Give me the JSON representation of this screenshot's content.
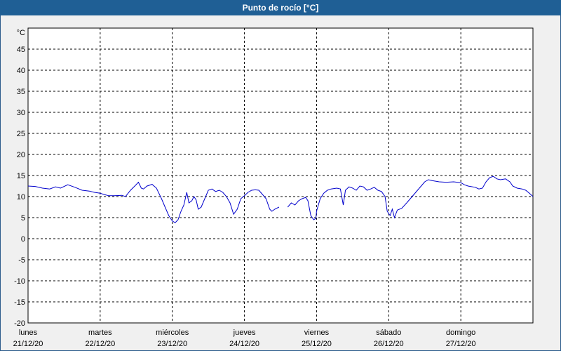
{
  "window": {
    "title": "Punto de rocío [°C]"
  },
  "chart_data": {
    "type": "line",
    "title": "Punto de rocío [°C]",
    "ylabel": "°C",
    "ylim": [
      -20,
      50
    ],
    "yticks": [
      45,
      40,
      35,
      30,
      25,
      20,
      15,
      10,
      5,
      0,
      -5,
      -10,
      -15,
      -20
    ],
    "grid": true,
    "x_range_days": [
      0,
      7
    ],
    "x_ticks": [
      {
        "day": "lunes",
        "date": "21/12/20",
        "pos": 0
      },
      {
        "day": "martes",
        "date": "22/12/20",
        "pos": 1
      },
      {
        "day": "miércoles",
        "date": "23/12/20",
        "pos": 2
      },
      {
        "day": "jueves",
        "date": "24/12/20",
        "pos": 3
      },
      {
        "day": "viernes",
        "date": "25/12/20",
        "pos": 4
      },
      {
        "day": "sábado",
        "date": "26/12/20",
        "pos": 5
      },
      {
        "day": "domingo",
        "date": "27/12/20",
        "pos": 6
      }
    ],
    "series": [
      {
        "color": "#0000cc",
        "segments": [
          [
            [
              0.0,
              12.5
            ],
            [
              0.1,
              12.4
            ],
            [
              0.2,
              12.0
            ],
            [
              0.3,
              11.8
            ],
            [
              0.38,
              12.3
            ],
            [
              0.45,
              12.0
            ],
            [
              0.55,
              12.8
            ],
            [
              0.65,
              12.2
            ],
            [
              0.75,
              11.5
            ],
            [
              0.85,
              11.3
            ],
            [
              0.92,
              11.0
            ],
            [
              1.0,
              10.8
            ],
            [
              1.05,
              10.5
            ],
            [
              1.12,
              10.2
            ],
            [
              1.2,
              10.2
            ],
            [
              1.3,
              10.3
            ],
            [
              1.35,
              10.0
            ],
            [
              1.42,
              11.5
            ],
            [
              1.48,
              12.5
            ],
            [
              1.53,
              13.4
            ],
            [
              1.57,
              12.0
            ],
            [
              1.6,
              11.8
            ],
            [
              1.65,
              12.5
            ],
            [
              1.72,
              12.9
            ],
            [
              1.78,
              12.0
            ],
            [
              1.85,
              9.5
            ],
            [
              1.9,
              7.5
            ],
            [
              1.95,
              5.5
            ],
            [
              2.0,
              4.2
            ],
            [
              2.04,
              3.8
            ],
            [
              2.08,
              4.5
            ],
            [
              2.12,
              6.5
            ],
            [
              2.16,
              8.0
            ],
            [
              2.2,
              11.0
            ],
            [
              2.23,
              8.5
            ],
            [
              2.27,
              9.0
            ],
            [
              2.3,
              10.0
            ],
            [
              2.33,
              9.2
            ],
            [
              2.36,
              7.0
            ],
            [
              2.4,
              7.5
            ],
            [
              2.45,
              9.5
            ],
            [
              2.5,
              11.5
            ],
            [
              2.55,
              11.8
            ],
            [
              2.6,
              11.2
            ],
            [
              2.65,
              11.5
            ],
            [
              2.7,
              11.0
            ],
            [
              2.75,
              10.0
            ],
            [
              2.8,
              8.5
            ],
            [
              2.85,
              5.8
            ],
            [
              2.9,
              7.0
            ],
            [
              2.95,
              9.5
            ],
            [
              3.0,
              10.2
            ],
            [
              3.05,
              11.0
            ],
            [
              3.1,
              11.5
            ],
            [
              3.15,
              11.6
            ],
            [
              3.2,
              11.5
            ],
            [
              3.25,
              10.5
            ],
            [
              3.3,
              9.5
            ],
            [
              3.35,
              7.0
            ],
            [
              3.38,
              6.5
            ],
            [
              3.42,
              7.0
            ],
            [
              3.48,
              7.5
            ]
          ],
          [
            [
              3.6,
              7.5
            ],
            [
              3.65,
              8.5
            ],
            [
              3.7,
              8.0
            ],
            [
              3.75,
              9.0
            ],
            [
              3.8,
              9.5
            ],
            [
              3.85,
              9.8
            ],
            [
              3.88,
              9.0
            ],
            [
              3.92,
              5.5
            ],
            [
              3.96,
              4.5
            ],
            [
              3.99,
              4.8
            ],
            [
              4.0,
              6.5
            ],
            [
              4.05,
              9.5
            ],
            [
              4.1,
              10.8
            ],
            [
              4.15,
              11.5
            ],
            [
              4.2,
              11.8
            ],
            [
              4.28,
              12.0
            ],
            [
              4.33,
              11.8
            ],
            [
              4.37,
              8.0
            ],
            [
              4.4,
              11.5
            ],
            [
              4.45,
              12.3
            ],
            [
              4.5,
              12.0
            ],
            [
              4.55,
              11.5
            ],
            [
              4.6,
              12.5
            ],
            [
              4.65,
              12.3
            ],
            [
              4.7,
              11.5
            ],
            [
              4.75,
              11.8
            ],
            [
              4.8,
              12.2
            ],
            [
              4.85,
              11.5
            ],
            [
              4.9,
              11.2
            ],
            [
              4.95,
              10.0
            ],
            [
              4.98,
              6.5
            ],
            [
              5.02,
              5.5
            ],
            [
              5.05,
              7.0
            ],
            [
              5.08,
              5.0
            ],
            [
              5.12,
              6.8
            ],
            [
              5.18,
              7.2
            ],
            [
              5.25,
              8.5
            ],
            [
              5.3,
              9.5
            ],
            [
              5.35,
              10.5
            ],
            [
              5.4,
              11.5
            ],
            [
              5.45,
              12.5
            ],
            [
              5.5,
              13.5
            ],
            [
              5.55,
              14.0
            ],
            [
              5.6,
              13.8
            ],
            [
              5.7,
              13.5
            ],
            [
              5.8,
              13.4
            ],
            [
              5.9,
              13.5
            ],
            [
              6.0,
              13.3
            ],
            [
              6.05,
              12.8
            ],
            [
              6.1,
              12.5
            ],
            [
              6.2,
              12.2
            ],
            [
              6.25,
              11.8
            ],
            [
              6.3,
              12.0
            ],
            [
              6.35,
              13.5
            ],
            [
              6.4,
              14.5
            ],
            [
              6.45,
              14.8
            ],
            [
              6.5,
              14.2
            ],
            [
              6.55,
              14.0
            ],
            [
              6.62,
              14.2
            ],
            [
              6.68,
              13.5
            ],
            [
              6.72,
              12.5
            ],
            [
              6.78,
              12.0
            ],
            [
              6.85,
              11.8
            ],
            [
              6.9,
              11.5
            ],
            [
              6.95,
              10.8
            ],
            [
              7.0,
              10.0
            ]
          ]
        ]
      }
    ]
  }
}
